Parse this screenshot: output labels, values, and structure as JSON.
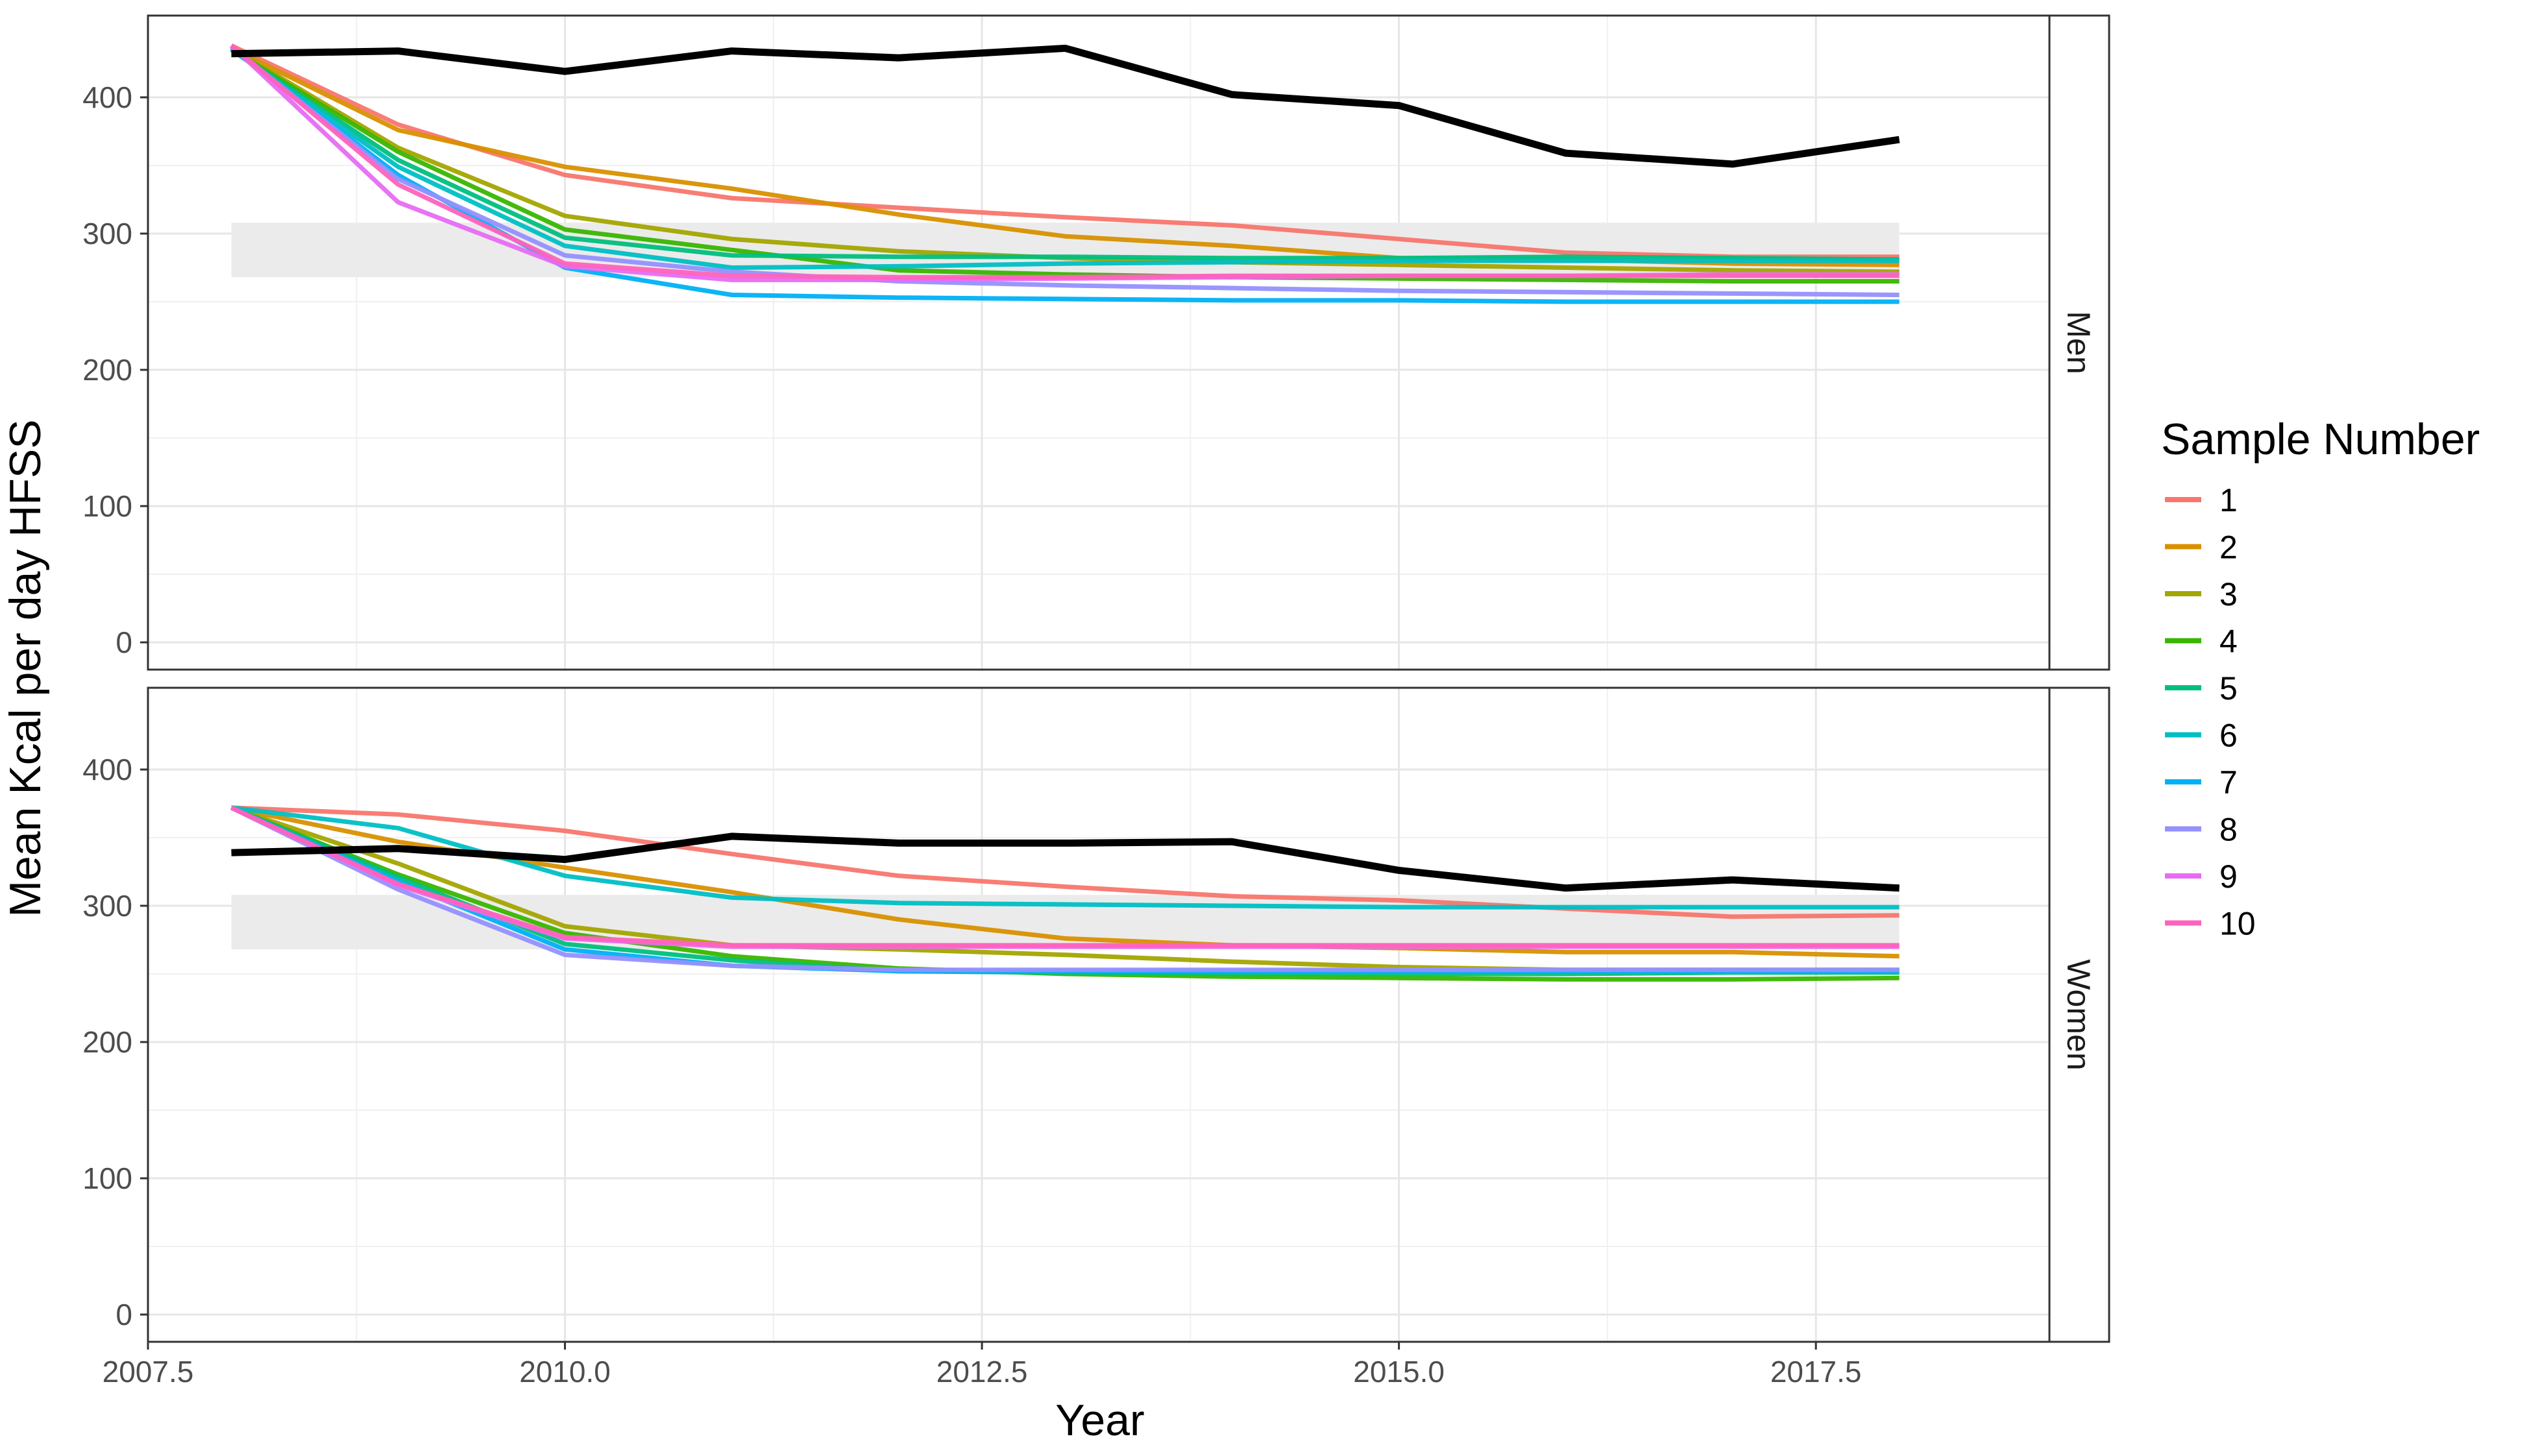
{
  "chart_data": {
    "type": "line",
    "xlabel": "Year",
    "ylabel": "Mean Kcal per day HFSS",
    "xlim": [
      2007.5,
      2018.9
    ],
    "ylim": [
      -20,
      460
    ],
    "x_ticks": [
      "2007.5",
      "2010.0",
      "2012.5",
      "2015.0",
      "2017.5"
    ],
    "x_tick_values": [
      2007.5,
      2010.0,
      2012.5,
      2015.0,
      2017.5
    ],
    "y_ticks": [
      "0",
      "100",
      "200",
      "300",
      "400"
    ],
    "y_tick_values": [
      0,
      100,
      200,
      300,
      400
    ],
    "grid": true,
    "legend": {
      "title": "Sample Number",
      "placement": "right",
      "entries": [
        "1",
        "2",
        "3",
        "4",
        "5",
        "6",
        "7",
        "8",
        "9",
        "10"
      ],
      "colors": [
        "#F8766D",
        "#D89000",
        "#A3A500",
        "#39B600",
        "#00BF7D",
        "#00BFC4",
        "#00B0F6",
        "#9590FF",
        "#E76BF3",
        "#FF62BC"
      ]
    },
    "x": [
      2008,
      2009,
      2010,
      2011,
      2012,
      2013,
      2014,
      2015,
      2016,
      2017,
      2018
    ],
    "panels": [
      {
        "strip": "Men",
        "band": [
          268,
          308
        ],
        "reference": [
          432,
          434,
          419,
          434,
          429,
          436,
          402,
          394,
          359,
          351,
          369
        ],
        "series": [
          {
            "name": "1",
            "values": [
              438,
              380,
              343,
              326,
              319,
              312,
              306,
              296,
              286,
              283,
              283
            ]
          },
          {
            "name": "2",
            "values": [
              436,
              376,
              349,
              333,
              314,
              298,
              291,
              282,
              281,
              278,
              277
            ]
          },
          {
            "name": "3",
            "values": [
              436,
              363,
              313,
              296,
              287,
              282,
              279,
              277,
              275,
              273,
              272
            ]
          },
          {
            "name": "4",
            "values": [
              435,
              360,
              303,
              288,
              273,
              270,
              268,
              267,
              266,
              265,
              265
            ]
          },
          {
            "name": "5",
            "values": [
              435,
              354,
              297,
              284,
              283,
              283,
              282,
              282,
              283,
              282,
              281
            ]
          },
          {
            "name": "6",
            "values": [
              435,
              349,
              291,
              275,
              276,
              278,
              279,
              280,
              280,
              280,
              280
            ]
          },
          {
            "name": "7",
            "values": [
              436,
              343,
              275,
              255,
              253,
              252,
              251,
              251,
              250,
              250,
              250
            ]
          },
          {
            "name": "8",
            "values": [
              437,
              340,
              284,
              272,
              265,
              262,
              260,
              258,
              257,
              256,
              255
            ]
          },
          {
            "name": "9",
            "values": [
              438,
              323,
              276,
              266,
              266,
              267,
              268,
              269,
              269,
              270,
              270
            ]
          },
          {
            "name": "10",
            "values": [
              438,
              336,
              278,
              269,
              268,
              268,
              269,
              269,
              269,
              269,
              269
            ]
          }
        ]
      },
      {
        "strip": "Women",
        "band": [
          268,
          308
        ],
        "reference": [
          339,
          342,
          334,
          351,
          346,
          346,
          347,
          326,
          313,
          319,
          313
        ],
        "series": [
          {
            "name": "1",
            "values": [
              372,
              367,
              355,
              338,
              322,
              314,
              307,
              304,
              298,
              292,
              293
            ]
          },
          {
            "name": "2",
            "values": [
              372,
              347,
              328,
              310,
              290,
              276,
              271,
              269,
              266,
              266,
              263
            ]
          },
          {
            "name": "3",
            "values": [
              372,
              331,
              285,
              271,
              268,
              264,
              259,
              255,
              253,
              253,
              253
            ]
          },
          {
            "name": "4",
            "values": [
              372,
              323,
              280,
              263,
              254,
              250,
              248,
              247,
              246,
              246,
              247
            ]
          },
          {
            "name": "5",
            "values": [
              372,
              321,
              272,
              260,
              252,
              251,
              250,
              250,
              250,
              251,
              251
            ]
          },
          {
            "name": "6",
            "values": [
              372,
              357,
              322,
              306,
              302,
              301,
              300,
              299,
              299,
              299,
              299
            ]
          },
          {
            "name": "7",
            "values": [
              372,
              318,
              268,
              256,
              252,
              252,
              252,
              252,
              252,
              252,
              252
            ]
          },
          {
            "name": "8",
            "values": [
              372,
              312,
              264,
              256,
              253,
              253,
              253,
              253,
              253,
              253,
              253
            ]
          },
          {
            "name": "9",
            "values": [
              372,
              315,
              276,
              270,
              270,
              270,
              270,
              270,
              270,
              270,
              270
            ]
          },
          {
            "name": "10",
            "values": [
              372,
              316,
              277,
              271,
              271,
              271,
              271,
              271,
              271,
              271,
              271
            ]
          }
        ]
      }
    ]
  }
}
